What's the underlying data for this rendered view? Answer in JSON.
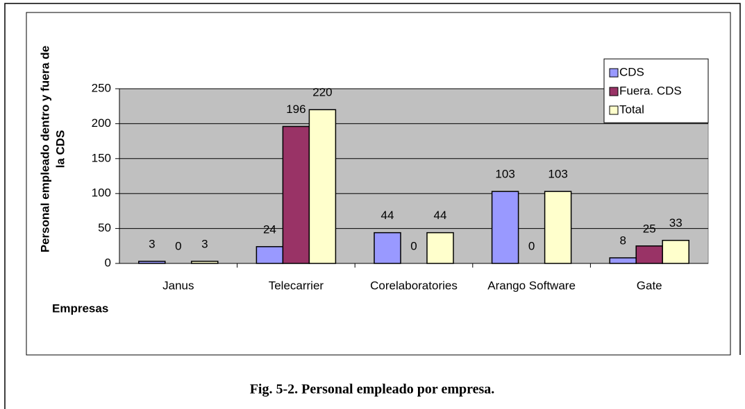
{
  "chart_data": {
    "type": "bar",
    "caption": "Fig. 5-2. Personal empleado por empresa.",
    "y_label": [
      "Personal empleado dentro y fuera de",
      "la CDS"
    ],
    "x_label": "Empresas",
    "categories": [
      "Janus",
      "Telecarrier",
      "Corelaboratories",
      "Arango Software",
      "Gate"
    ],
    "series": [
      {
        "name": "CDS",
        "color": "#9999ff",
        "values": [
          3,
          24,
          44,
          103,
          8
        ]
      },
      {
        "name": "Fuera. CDS",
        "color": "#993366",
        "values": [
          0,
          196,
          0,
          0,
          25
        ]
      },
      {
        "name": "Total",
        "color": "#ffffcc",
        "values": [
          3,
          220,
          44,
          103,
          33
        ]
      }
    ],
    "ylim": [
      0,
      250
    ],
    "yticks": [
      0,
      50,
      100,
      150,
      200,
      250
    ],
    "grid": true,
    "legend": "top-right"
  }
}
